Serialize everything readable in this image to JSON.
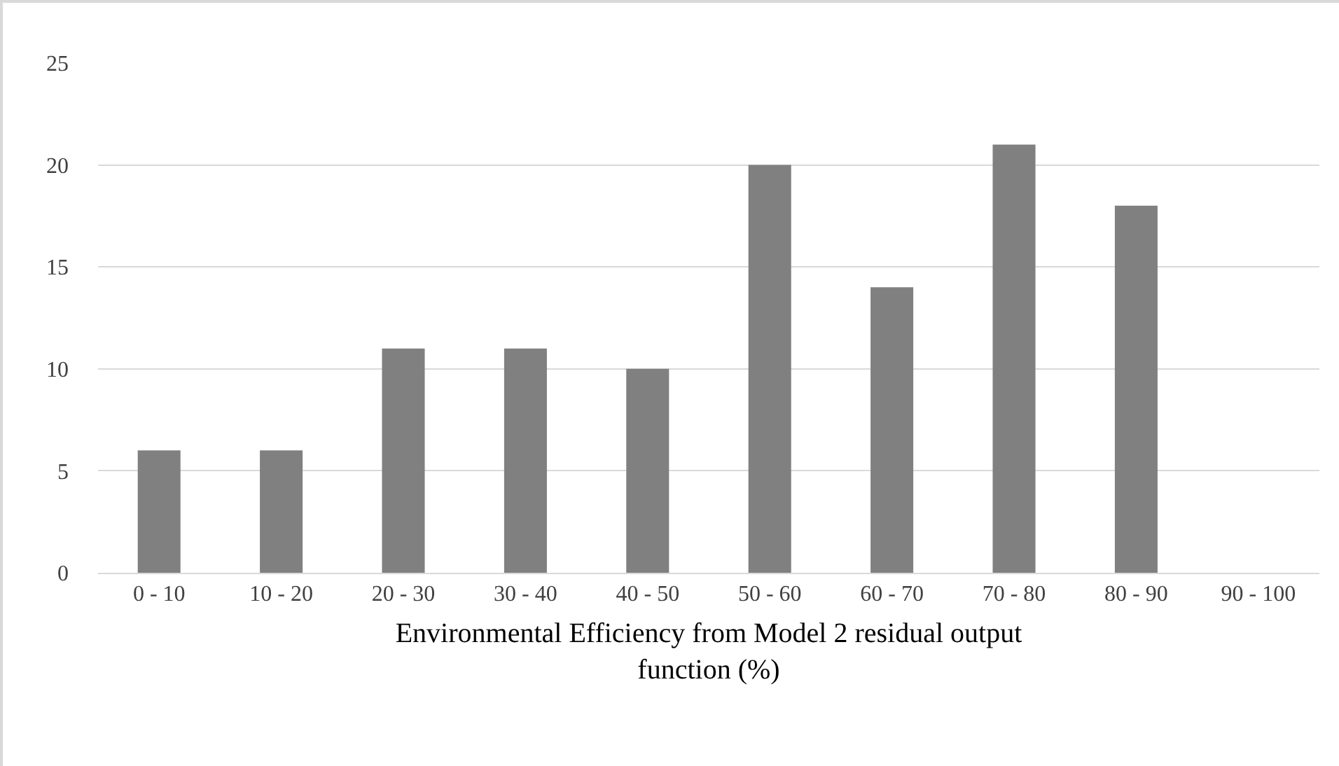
{
  "chart_data": {
    "type": "bar",
    "xlabel": "Environmental Efficiency from Model 2 residual output function (%)",
    "categories": [
      "0 - 10",
      "10 - 20",
      "20 - 30",
      "30 - 40",
      "40 - 50",
      "50 - 60",
      "60 - 70",
      "70 - 80",
      "80 - 90",
      "90 - 100"
    ],
    "values": [
      6,
      6,
      11,
      11,
      10,
      20,
      14,
      21,
      18,
      0
    ],
    "color": "#808080",
    "ylim": [
      0,
      25
    ],
    "yticks": [
      0,
      5,
      10,
      15,
      20,
      25
    ],
    "grid": "y"
  }
}
